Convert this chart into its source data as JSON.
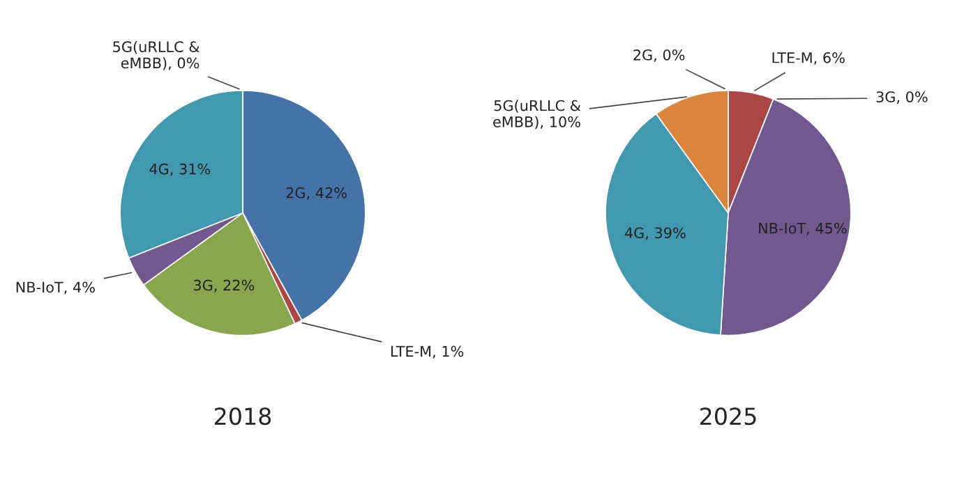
{
  "chart_data": [
    {
      "type": "pie",
      "title": "2018",
      "categories": [
        "2G",
        "LTE-M",
        "3G",
        "NB-IoT",
        "4G",
        "5G(uRLLC & eMBB)"
      ],
      "values": [
        42,
        1,
        22,
        4,
        31,
        0
      ],
      "colors": [
        "#4572a7",
        "#aa4643",
        "#89a54e",
        "#71588f",
        "#4198af",
        "#db843d"
      ],
      "value_labels": [
        ", 42%",
        ", 1%",
        ", 22%",
        ", 4%",
        ", 31%",
        ", 0%"
      ]
    },
    {
      "type": "pie",
      "title": "2025",
      "categories": [
        "2G",
        "LTE-M",
        "3G",
        "NB-IoT",
        "4G",
        "5G(uRLLC & eMBB)"
      ],
      "values": [
        0,
        6,
        0,
        45,
        39,
        10
      ],
      "colors": [
        "#4572a7",
        "#aa4643",
        "#89a54e",
        "#71588f",
        "#4198af",
        "#db843d"
      ],
      "value_labels": [
        ", 0%",
        ", 6%",
        ", 0%",
        ", 45%",
        ", 39%",
        ", 10%"
      ]
    }
  ]
}
